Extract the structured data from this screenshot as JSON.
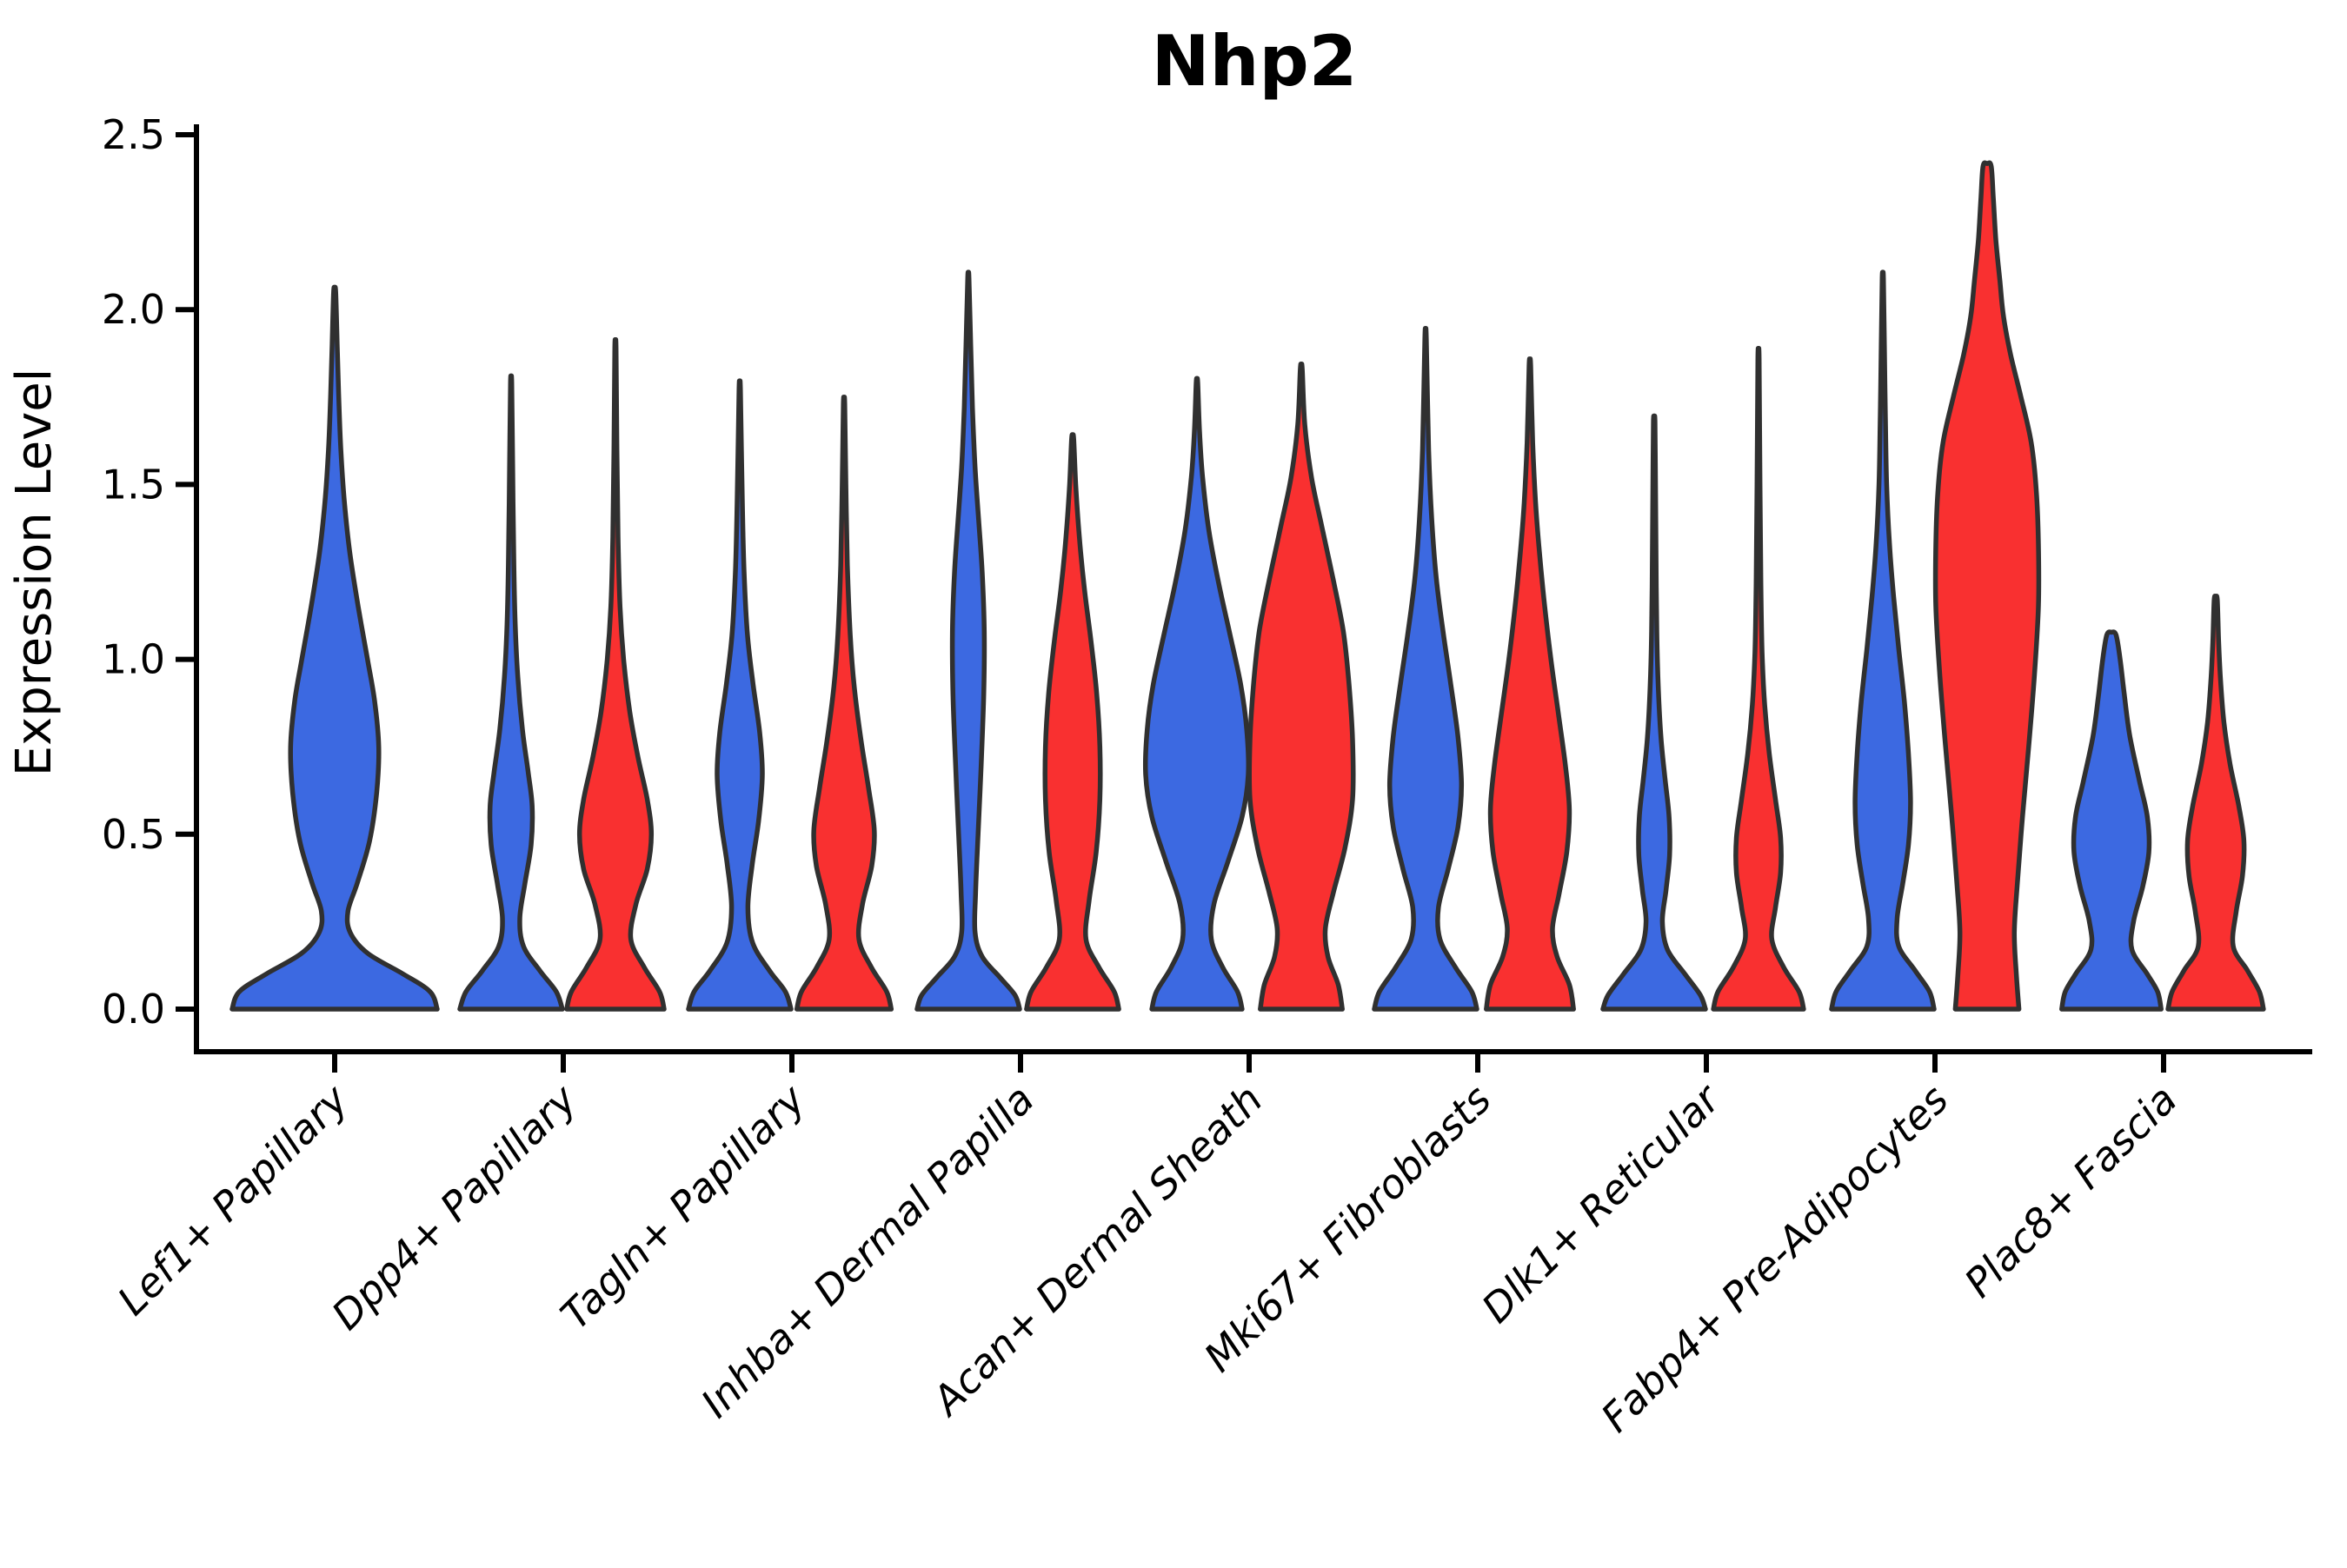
{
  "chart_data": {
    "type": "violin",
    "title": "Nhp2",
    "ylabel": "Expression Level",
    "xlabel": "",
    "ylim": [
      -0.12,
      2.53
    ],
    "yticks": [
      0.0,
      0.5,
      1.0,
      1.5,
      2.0,
      2.5
    ],
    "ytick_labels": [
      "0.0",
      "0.5",
      "1.0",
      "1.5",
      "2.0",
      "2.5"
    ],
    "grid": false,
    "legend": "none",
    "categories": [
      "Lef1+ Papillary",
      "Dpp4+ Papillary",
      "Tagln+ Papillary",
      "Inhba+ Dermal Papilla",
      "Acan+ Dermal Sheath",
      "Mki67+ Fibroblasts",
      "Dlk1+ Reticular",
      "Fabp4+ Pre-Adipocytes",
      "Plac8+ Fascia"
    ],
    "colors": {
      "blue_fill": "#3C69E1",
      "red_fill": "#F93030",
      "violin_outline": "#303030",
      "axis": "#000000",
      "background": "#FFFFFF"
    },
    "violins": [
      {
        "category_index": 0,
        "category": "Lef1+ Papillary",
        "group": "blue",
        "solo": true,
        "peak_expression": 2.05,
        "profile": [
          [
            0,
            1.0
          ],
          [
            0.05,
            0.93
          ],
          [
            0.1,
            0.67
          ],
          [
            0.16,
            0.32
          ],
          [
            0.22,
            0.15
          ],
          [
            0.28,
            0.13
          ],
          [
            0.36,
            0.22
          ],
          [
            0.48,
            0.34
          ],
          [
            0.62,
            0.41
          ],
          [
            0.75,
            0.43
          ],
          [
            0.88,
            0.39
          ],
          [
            1.0,
            0.32
          ],
          [
            1.15,
            0.23
          ],
          [
            1.3,
            0.15
          ],
          [
            1.45,
            0.095
          ],
          [
            1.6,
            0.06
          ],
          [
            1.75,
            0.04
          ],
          [
            1.9,
            0.025
          ],
          [
            2.05,
            0.01
          ]
        ]
      },
      {
        "category_index": 1,
        "category": "Dpp4+ Papillary",
        "group": "blue",
        "solo": false,
        "peak_expression": 1.79,
        "profile": [
          [
            0,
            1.0
          ],
          [
            0.05,
            0.88
          ],
          [
            0.11,
            0.56
          ],
          [
            0.18,
            0.24
          ],
          [
            0.26,
            0.17
          ],
          [
            0.36,
            0.27
          ],
          [
            0.47,
            0.39
          ],
          [
            0.58,
            0.41
          ],
          [
            0.68,
            0.33
          ],
          [
            0.8,
            0.22
          ],
          [
            0.95,
            0.13
          ],
          [
            1.1,
            0.08
          ],
          [
            1.3,
            0.05
          ],
          [
            1.55,
            0.03
          ],
          [
            1.79,
            0.012
          ]
        ]
      },
      {
        "category_index": 1,
        "category": "Dpp4+ Papillary",
        "group": "red",
        "solo": false,
        "peak_expression": 1.89,
        "profile": [
          [
            0,
            0.95
          ],
          [
            0.05,
            0.86
          ],
          [
            0.12,
            0.56
          ],
          [
            0.2,
            0.3
          ],
          [
            0.3,
            0.4
          ],
          [
            0.4,
            0.62
          ],
          [
            0.5,
            0.7
          ],
          [
            0.6,
            0.62
          ],
          [
            0.72,
            0.44
          ],
          [
            0.85,
            0.28
          ],
          [
            1.0,
            0.16
          ],
          [
            1.15,
            0.09
          ],
          [
            1.35,
            0.05
          ],
          [
            1.6,
            0.028
          ],
          [
            1.89,
            0.012
          ]
        ]
      },
      {
        "category_index": 2,
        "category": "Tagln+ Papillary",
        "group": "blue",
        "solo": false,
        "peak_expression": 1.77,
        "profile": [
          [
            0,
            1.0
          ],
          [
            0.05,
            0.89
          ],
          [
            0.11,
            0.58
          ],
          [
            0.19,
            0.25
          ],
          [
            0.29,
            0.16
          ],
          [
            0.41,
            0.24
          ],
          [
            0.54,
            0.37
          ],
          [
            0.67,
            0.44
          ],
          [
            0.79,
            0.39
          ],
          [
            0.93,
            0.26
          ],
          [
            1.07,
            0.15
          ],
          [
            1.25,
            0.085
          ],
          [
            1.45,
            0.05
          ],
          [
            1.77,
            0.013
          ]
        ]
      },
      {
        "category_index": 2,
        "category": "Tagln+ Papillary",
        "group": "red",
        "solo": false,
        "peak_expression": 1.73,
        "profile": [
          [
            0,
            0.92
          ],
          [
            0.05,
            0.83
          ],
          [
            0.12,
            0.53
          ],
          [
            0.2,
            0.29
          ],
          [
            0.3,
            0.36
          ],
          [
            0.41,
            0.54
          ],
          [
            0.51,
            0.59
          ],
          [
            0.63,
            0.48
          ],
          [
            0.77,
            0.33
          ],
          [
            0.92,
            0.2
          ],
          [
            1.07,
            0.12
          ],
          [
            1.27,
            0.065
          ],
          [
            1.5,
            0.035
          ],
          [
            1.73,
            0.013
          ]
        ]
      },
      {
        "category_index": 3,
        "category": "Inhba+ Dermal Papilla",
        "group": "blue",
        "solo": false,
        "peak_expression": 2.09,
        "profile": [
          [
            0,
            1.0
          ],
          [
            0.04,
            0.91
          ],
          [
            0.09,
            0.62
          ],
          [
            0.15,
            0.27
          ],
          [
            0.22,
            0.13
          ],
          [
            0.33,
            0.14
          ],
          [
            0.5,
            0.19
          ],
          [
            0.7,
            0.25
          ],
          [
            0.9,
            0.3
          ],
          [
            1.08,
            0.31
          ],
          [
            1.25,
            0.27
          ],
          [
            1.4,
            0.2
          ],
          [
            1.55,
            0.13
          ],
          [
            1.72,
            0.08
          ],
          [
            1.9,
            0.045
          ],
          [
            2.09,
            0.012
          ]
        ]
      },
      {
        "category_index": 3,
        "category": "Inhba+ Dermal Papilla",
        "group": "red",
        "solo": false,
        "peak_expression": 1.63,
        "profile": [
          [
            0,
            0.9
          ],
          [
            0.05,
            0.81
          ],
          [
            0.12,
            0.51
          ],
          [
            0.2,
            0.26
          ],
          [
            0.31,
            0.32
          ],
          [
            0.45,
            0.46
          ],
          [
            0.6,
            0.53
          ],
          [
            0.75,
            0.53
          ],
          [
            0.9,
            0.47
          ],
          [
            1.05,
            0.36
          ],
          [
            1.2,
            0.23
          ],
          [
            1.35,
            0.13
          ],
          [
            1.5,
            0.06
          ],
          [
            1.63,
            0.02
          ]
        ]
      },
      {
        "category_index": 4,
        "category": "Acan+ Dermal Sheath",
        "group": "blue",
        "solo": false,
        "peak_expression": 1.79,
        "profile": [
          [
            0,
            0.88
          ],
          [
            0.05,
            0.79
          ],
          [
            0.12,
            0.5
          ],
          [
            0.2,
            0.28
          ],
          [
            0.3,
            0.33
          ],
          [
            0.42,
            0.6
          ],
          [
            0.55,
            0.88
          ],
          [
            0.67,
            1.0
          ],
          [
            0.8,
            0.97
          ],
          [
            0.93,
            0.85
          ],
          [
            1.08,
            0.63
          ],
          [
            1.22,
            0.42
          ],
          [
            1.37,
            0.23
          ],
          [
            1.52,
            0.11
          ],
          [
            1.65,
            0.05
          ],
          [
            1.79,
            0.015
          ]
        ]
      },
      {
        "category_index": 4,
        "category": "Acan+ Dermal Sheath",
        "group": "red",
        "solo": false,
        "peak_expression": 1.83,
        "profile": [
          [
            0,
            0.8
          ],
          [
            0.07,
            0.72
          ],
          [
            0.15,
            0.52
          ],
          [
            0.23,
            0.47
          ],
          [
            0.33,
            0.62
          ],
          [
            0.46,
            0.85
          ],
          [
            0.6,
            1.0
          ],
          [
            0.77,
            1.0
          ],
          [
            0.93,
            0.93
          ],
          [
            1.08,
            0.82
          ],
          [
            1.23,
            0.62
          ],
          [
            1.38,
            0.4
          ],
          [
            1.52,
            0.2
          ],
          [
            1.67,
            0.07
          ],
          [
            1.83,
            0.018
          ]
        ]
      },
      {
        "category_index": 5,
        "category": "Mki67+ Fibroblasts",
        "group": "blue",
        "solo": false,
        "peak_expression": 1.92,
        "profile": [
          [
            0,
            1.0
          ],
          [
            0.05,
            0.9
          ],
          [
            0.12,
            0.58
          ],
          [
            0.2,
            0.28
          ],
          [
            0.29,
            0.25
          ],
          [
            0.4,
            0.44
          ],
          [
            0.52,
            0.63
          ],
          [
            0.64,
            0.7
          ],
          [
            0.78,
            0.63
          ],
          [
            0.93,
            0.49
          ],
          [
            1.08,
            0.34
          ],
          [
            1.23,
            0.21
          ],
          [
            1.4,
            0.12
          ],
          [
            1.6,
            0.06
          ],
          [
            1.92,
            0.013
          ]
        ]
      },
      {
        "category_index": 5,
        "category": "Mki67+ Fibroblasts",
        "group": "red",
        "solo": false,
        "peak_expression": 1.84,
        "profile": [
          [
            0,
            0.85
          ],
          [
            0.07,
            0.77
          ],
          [
            0.15,
            0.53
          ],
          [
            0.23,
            0.44
          ],
          [
            0.33,
            0.57
          ],
          [
            0.45,
            0.72
          ],
          [
            0.57,
            0.77
          ],
          [
            0.7,
            0.69
          ],
          [
            0.85,
            0.55
          ],
          [
            1.0,
            0.41
          ],
          [
            1.15,
            0.29
          ],
          [
            1.3,
            0.19
          ],
          [
            1.45,
            0.11
          ],
          [
            1.62,
            0.055
          ],
          [
            1.84,
            0.015
          ]
        ]
      },
      {
        "category_index": 6,
        "category": "Dlk1+ Reticular",
        "group": "blue",
        "solo": false,
        "peak_expression": 1.68,
        "profile": [
          [
            0,
            1.0
          ],
          [
            0.04,
            0.9
          ],
          [
            0.1,
            0.6
          ],
          [
            0.17,
            0.26
          ],
          [
            0.25,
            0.16
          ],
          [
            0.34,
            0.23
          ],
          [
            0.44,
            0.3
          ],
          [
            0.55,
            0.29
          ],
          [
            0.66,
            0.21
          ],
          [
            0.78,
            0.13
          ],
          [
            0.92,
            0.08
          ],
          [
            1.08,
            0.05
          ],
          [
            1.3,
            0.035
          ],
          [
            1.5,
            0.025
          ],
          [
            1.68,
            0.015
          ]
        ]
      },
      {
        "category_index": 6,
        "category": "Dlk1+ Reticular",
        "group": "red",
        "solo": false,
        "peak_expression": 1.86,
        "profile": [
          [
            0,
            0.88
          ],
          [
            0.05,
            0.79
          ],
          [
            0.12,
            0.49
          ],
          [
            0.2,
            0.26
          ],
          [
            0.29,
            0.33
          ],
          [
            0.39,
            0.43
          ],
          [
            0.49,
            0.43
          ],
          [
            0.6,
            0.33
          ],
          [
            0.73,
            0.21
          ],
          [
            0.87,
            0.12
          ],
          [
            1.02,
            0.07
          ],
          [
            1.22,
            0.045
          ],
          [
            1.5,
            0.028
          ],
          [
            1.86,
            0.012
          ]
        ]
      },
      {
        "category_index": 7,
        "category": "Fabp4+ Pre-Adipocytes",
        "group": "blue",
        "solo": false,
        "peak_expression": 2.09,
        "profile": [
          [
            0,
            1.0
          ],
          [
            0.05,
            0.91
          ],
          [
            0.11,
            0.63
          ],
          [
            0.18,
            0.31
          ],
          [
            0.26,
            0.28
          ],
          [
            0.36,
            0.39
          ],
          [
            0.47,
            0.5
          ],
          [
            0.59,
            0.54
          ],
          [
            0.73,
            0.5
          ],
          [
            0.88,
            0.42
          ],
          [
            1.03,
            0.31
          ],
          [
            1.18,
            0.21
          ],
          [
            1.33,
            0.13
          ],
          [
            1.5,
            0.075
          ],
          [
            1.7,
            0.05
          ],
          [
            1.9,
            0.03
          ],
          [
            2.09,
            0.012
          ]
        ]
      },
      {
        "category_index": 7,
        "category": "Fabp4+ Pre-Adipocytes",
        "group": "red",
        "solo": false,
        "peak_expression": 2.41,
        "profile": [
          [
            0,
            0.62
          ],
          [
            0.1,
            0.57
          ],
          [
            0.22,
            0.53
          ],
          [
            0.36,
            0.59
          ],
          [
            0.55,
            0.69
          ],
          [
            0.75,
            0.81
          ],
          [
            0.95,
            0.92
          ],
          [
            1.15,
            1.0
          ],
          [
            1.33,
            1.0
          ],
          [
            1.48,
            0.96
          ],
          [
            1.62,
            0.86
          ],
          [
            1.75,
            0.66
          ],
          [
            1.87,
            0.46
          ],
          [
            1.98,
            0.32
          ],
          [
            2.08,
            0.25
          ],
          [
            2.2,
            0.17
          ],
          [
            2.32,
            0.12
          ],
          [
            2.41,
            0.08
          ]
        ]
      },
      {
        "category_index": 8,
        "category": "Plac8+ Fascia",
        "group": "blue",
        "solo": false,
        "peak_expression": 1.07,
        "profile": [
          [
            0,
            0.97
          ],
          [
            0.05,
            0.9
          ],
          [
            0.1,
            0.7
          ],
          [
            0.17,
            0.4
          ],
          [
            0.25,
            0.43
          ],
          [
            0.35,
            0.61
          ],
          [
            0.45,
            0.73
          ],
          [
            0.55,
            0.7
          ],
          [
            0.65,
            0.55
          ],
          [
            0.78,
            0.36
          ],
          [
            0.9,
            0.25
          ],
          [
            1.0,
            0.17
          ],
          [
            1.07,
            0.09
          ]
        ]
      },
      {
        "category_index": 8,
        "category": "Plac8+ Fascia",
        "group": "red",
        "solo": false,
        "peak_expression": 1.17,
        "profile": [
          [
            0,
            0.93
          ],
          [
            0.05,
            0.85
          ],
          [
            0.11,
            0.62
          ],
          [
            0.18,
            0.34
          ],
          [
            0.28,
            0.4
          ],
          [
            0.38,
            0.52
          ],
          [
            0.48,
            0.55
          ],
          [
            0.58,
            0.45
          ],
          [
            0.7,
            0.28
          ],
          [
            0.82,
            0.16
          ],
          [
            0.95,
            0.09
          ],
          [
            1.06,
            0.055
          ],
          [
            1.17,
            0.03
          ]
        ]
      }
    ]
  }
}
